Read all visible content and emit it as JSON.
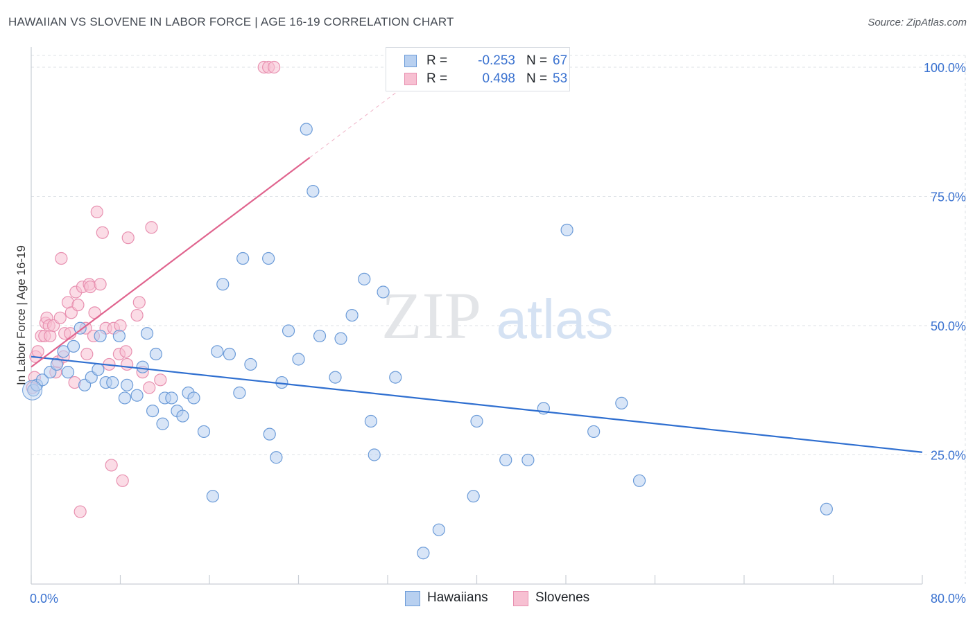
{
  "title": "HAWAIIAN VS SLOVENE IN LABOR FORCE | AGE 16-19 CORRELATION CHART",
  "source": "Source: ZipAtlas.com",
  "watermark": {
    "zip": "ZIP",
    "atlas": "atlas"
  },
  "legend": {
    "r_label": "R =",
    "n_label": "N =",
    "rows": [
      {
        "series": "Hawaiians",
        "r": "-0.253",
        "n": "67"
      },
      {
        "series": "Slovenes",
        "r": "0.498",
        "n": "53"
      }
    ]
  },
  "colors": {
    "hawaiians_fill": "#b8d0f0",
    "hawaiians_stroke": "#6b9bd8",
    "hawaiians_line": "#2f6fd0",
    "slovenes_fill": "#f7c0d2",
    "slovenes_stroke": "#e890b0",
    "slovenes_line": "#e0648e",
    "axis_text": "#3a72d0",
    "grid": "#dde1e6"
  },
  "chart_data": {
    "type": "scatter",
    "xlabel": "In Labor Force | Age 16-19",
    "ylabel": "In Labor Force | Age 16-19",
    "x_axis": {
      "min_label": "0.0%",
      "max_label": "80.0%",
      "range": [
        0,
        80
      ]
    },
    "y_axis": {
      "ticks": [
        "100.0%",
        "75.0%",
        "50.0%",
        "25.0%"
      ],
      "tick_values": [
        100,
        75,
        50,
        25
      ],
      "range": [
        0,
        100
      ]
    },
    "grid": true,
    "legend_position": "top-center",
    "series": [
      {
        "name": "Hawaiians",
        "trend": {
          "x0": 0,
          "y0": 44,
          "x1": 80,
          "y1": 25.5
        },
        "points": [
          [
            0.2,
            37.5
          ],
          [
            0.5,
            38.5
          ],
          [
            1.0,
            39.5
          ],
          [
            1.7,
            41.0
          ],
          [
            2.3,
            42.5
          ],
          [
            2.9,
            45.0
          ],
          [
            3.3,
            41.0
          ],
          [
            3.8,
            46.0
          ],
          [
            4.4,
            49.5
          ],
          [
            4.8,
            38.5
          ],
          [
            5.4,
            40.0
          ],
          [
            6.0,
            41.5
          ],
          [
            6.2,
            48.0
          ],
          [
            6.7,
            39.0
          ],
          [
            7.3,
            39.0
          ],
          [
            7.9,
            48.0
          ],
          [
            8.4,
            36.0
          ],
          [
            8.6,
            38.5
          ],
          [
            9.5,
            36.5
          ],
          [
            10.0,
            42.0
          ],
          [
            10.4,
            48.5
          ],
          [
            10.9,
            33.5
          ],
          [
            11.2,
            44.5
          ],
          [
            11.8,
            31.0
          ],
          [
            12.0,
            36.0
          ],
          [
            12.6,
            36.0
          ],
          [
            13.1,
            33.5
          ],
          [
            13.6,
            32.5
          ],
          [
            14.1,
            37.0
          ],
          [
            14.6,
            36.0
          ],
          [
            15.5,
            29.5
          ],
          [
            16.3,
            17.0
          ],
          [
            16.7,
            45.0
          ],
          [
            17.2,
            58.0
          ],
          [
            17.8,
            44.5
          ],
          [
            18.7,
            37.0
          ],
          [
            19.0,
            63.0
          ],
          [
            19.7,
            42.5
          ],
          [
            21.3,
            63.0
          ],
          [
            21.4,
            29.0
          ],
          [
            22.0,
            24.5
          ],
          [
            22.5,
            39.0
          ],
          [
            23.1,
            49.0
          ],
          [
            24.0,
            43.5
          ],
          [
            24.7,
            88.0
          ],
          [
            25.3,
            76.0
          ],
          [
            25.9,
            48.0
          ],
          [
            27.3,
            40.0
          ],
          [
            27.8,
            47.5
          ],
          [
            28.8,
            52.0
          ],
          [
            29.9,
            59.0
          ],
          [
            30.5,
            31.5
          ],
          [
            30.8,
            25.0
          ],
          [
            31.6,
            56.5
          ],
          [
            32.7,
            40.0
          ],
          [
            35.2,
            6.0
          ],
          [
            36.6,
            10.5
          ],
          [
            39.7,
            17.0
          ],
          [
            40.0,
            31.5
          ],
          [
            42.6,
            24.0
          ],
          [
            44.6,
            24.0
          ],
          [
            46.0,
            34.0
          ],
          [
            48.1,
            68.5
          ],
          [
            50.5,
            29.5
          ],
          [
            53.0,
            35.0
          ],
          [
            54.6,
            20.0
          ],
          [
            71.4,
            14.5
          ]
        ]
      },
      {
        "name": "Slovenes",
        "trend": {
          "x0": 0,
          "y0": 42,
          "x1": 25,
          "y1": 82.5
        },
        "trend_dashed": {
          "x0": 25,
          "y0": 82.5,
          "x1": 33,
          "y1": 95.5
        },
        "points": [
          [
            0.1,
            38.0
          ],
          [
            0.4,
            44.0
          ],
          [
            0.6,
            45.0
          ],
          [
            0.9,
            48.0
          ],
          [
            1.2,
            48.0
          ],
          [
            1.3,
            50.5
          ],
          [
            1.4,
            51.5
          ],
          [
            1.6,
            50.0
          ],
          [
            1.7,
            48.0
          ],
          [
            2.0,
            50.0
          ],
          [
            2.2,
            41.0
          ],
          [
            2.4,
            43.0
          ],
          [
            2.6,
            51.5
          ],
          [
            2.7,
            63.0
          ],
          [
            3.0,
            48.5
          ],
          [
            3.3,
            54.5
          ],
          [
            3.5,
            48.5
          ],
          [
            3.6,
            52.5
          ],
          [
            3.9,
            39.0
          ],
          [
            4.0,
            56.5
          ],
          [
            4.2,
            54.0
          ],
          [
            4.4,
            14.0
          ],
          [
            4.6,
            57.5
          ],
          [
            4.9,
            49.5
          ],
          [
            5.0,
            44.5
          ],
          [
            5.2,
            58.0
          ],
          [
            5.3,
            57.5
          ],
          [
            5.6,
            48.0
          ],
          [
            5.7,
            52.5
          ],
          [
            5.9,
            72.0
          ],
          [
            6.2,
            58.0
          ],
          [
            6.4,
            68.0
          ],
          [
            6.7,
            49.5
          ],
          [
            7.0,
            42.5
          ],
          [
            7.2,
            23.0
          ],
          [
            7.4,
            49.5
          ],
          [
            7.9,
            44.5
          ],
          [
            8.0,
            50.0
          ],
          [
            8.2,
            20.0
          ],
          [
            8.5,
            45.0
          ],
          [
            8.6,
            42.5
          ],
          [
            8.7,
            67.0
          ],
          [
            9.5,
            52.0
          ],
          [
            9.7,
            54.5
          ],
          [
            10.0,
            41.0
          ],
          [
            10.6,
            38.0
          ],
          [
            10.8,
            69.0
          ],
          [
            11.6,
            39.5
          ],
          [
            20.9,
            100.0
          ],
          [
            21.3,
            100.0
          ],
          [
            21.8,
            100.0
          ],
          [
            0.3,
            40.0
          ],
          [
            2.9,
            44.0
          ]
        ]
      }
    ]
  }
}
